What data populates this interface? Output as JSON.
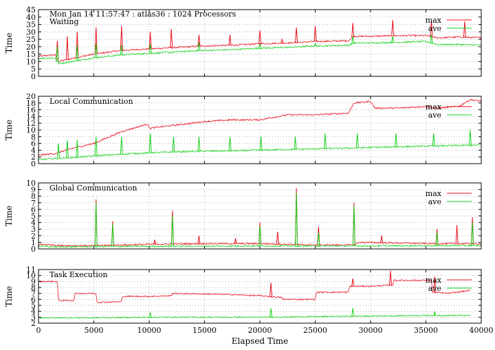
{
  "chart_data": {
    "type": "line",
    "x_axis": {
      "label": "Elapsed Time",
      "range": [
        0,
        40000
      ],
      "ticks": [
        0,
        5000,
        10000,
        15000,
        20000,
        25000,
        30000,
        35000,
        40000
      ]
    },
    "colors": {
      "max": "#e8101c",
      "ave": "#18d21c",
      "grid": "#a0a0a0"
    },
    "legend_position": "top-right",
    "grid": true,
    "panels": [
      {
        "title": "Mon Jan 14 11:57:47 : atlas36 : 1024 Processors",
        "subtitle": "Waiting",
        "ylabel": "Time",
        "ylim": [
          0,
          45
        ],
        "yticks": [
          0,
          5,
          10,
          15,
          20,
          25,
          30,
          35,
          40,
          45
        ],
        "series": [
          {
            "name": "max",
            "x": [
              0,
              1500,
              1800,
              3000,
              5000,
              7500,
              10000,
              12500,
              15000,
              17500,
              20000,
              22500,
              25000,
              28000,
              28500,
              30000,
              32500,
              35000,
              36000,
              38000,
              40000
            ],
            "y": [
              13.5,
              14.5,
              10,
              12,
              15,
              17.5,
              18.5,
              19.5,
              20.5,
              21,
              22,
              22.5,
              23.5,
              24,
              27,
              27,
              27.5,
              27.5,
              26,
              26.5,
              26
            ],
            "spikes": [
              [
                1700,
                24
              ],
              [
                2600,
                27
              ],
              [
                3500,
                30
              ],
              [
                5200,
                33
              ],
              [
                7500,
                34
              ],
              [
                10100,
                30
              ],
              [
                12000,
                32
              ],
              [
                14500,
                28
              ],
              [
                17300,
                28
              ],
              [
                20000,
                31
              ],
              [
                22000,
                25
              ],
              [
                23300,
                33
              ],
              [
                25000,
                34
              ],
              [
                28400,
                36
              ],
              [
                32000,
                38
              ],
              [
                35500,
                38
              ],
              [
                38500,
                37
              ]
            ]
          },
          {
            "name": "ave",
            "x": [
              0,
              1500,
              1800,
              3000,
              5000,
              7500,
              10000,
              12500,
              15000,
              17500,
              20000,
              22500,
              25000,
              28000,
              28500,
              30000,
              32500,
              35000,
              36000,
              38000,
              40000
            ],
            "y": [
              12,
              12.5,
              8.5,
              10,
              12.5,
              14.5,
              15.5,
              16.5,
              17.5,
              18,
              19,
              19.5,
              20.5,
              21,
              22.5,
              22.5,
              23,
              23.5,
              21.5,
              21.5,
              21
            ],
            "spikes": [
              [
                1700,
                20
              ],
              [
                3500,
                21
              ],
              [
                5200,
                22
              ],
              [
                7500,
                21
              ],
              [
                10100,
                22
              ],
              [
                14500,
                23
              ],
              [
                20000,
                22
              ],
              [
                25000,
                22
              ],
              [
                28400,
                27
              ],
              [
                32000,
                27
              ],
              [
                35500,
                28
              ]
            ]
          }
        ]
      },
      {
        "title": "Local Communication",
        "subtitle": "",
        "ylabel": "Time",
        "ylim": [
          0,
          20
        ],
        "yticks": [
          0,
          2,
          4,
          6,
          8,
          10,
          12,
          14,
          16,
          18,
          20
        ],
        "series": [
          {
            "name": "max",
            "x": [
              0,
              1500,
              3000,
              5000,
              7500,
              9900,
              10000,
              12500,
              15000,
              17500,
              20000,
              22500,
              25000,
              28000,
              28500,
              30000,
              30400,
              32500,
              35000,
              36000,
              38000,
              39000,
              40000
            ],
            "y": [
              2.5,
              3,
              4.5,
              6,
              9.5,
              11.8,
              10.5,
              11.5,
              12.5,
              13,
              13,
              14.5,
              14.5,
              15,
              18,
              18.5,
              16.5,
              16.5,
              17,
              16.5,
              17,
              19,
              18.5
            ],
            "spikes": []
          },
          {
            "name": "ave",
            "x": [
              0,
              1500,
              3000,
              5000,
              7500,
              10000,
              12500,
              15000,
              17500,
              20000,
              22500,
              25000,
              28000,
              30000,
              32500,
              35000,
              38000,
              40000
            ],
            "y": [
              1.2,
              1.5,
              1.8,
              2.3,
              2.8,
              3.2,
              3.5,
              3.7,
              3.8,
              4.0,
              4.2,
              4.4,
              4.6,
              4.8,
              5.0,
              5.2,
              5.4,
              5.5
            ],
            "spikes": [
              [
                1800,
                6
              ],
              [
                2600,
                7
              ],
              [
                3500,
                7
              ],
              [
                5200,
                8
              ],
              [
                7500,
                8
              ],
              [
                10100,
                9
              ],
              [
                12200,
                8
              ],
              [
                14500,
                8
              ],
              [
                17300,
                8
              ],
              [
                20100,
                8
              ],
              [
                23200,
                8
              ],
              [
                25900,
                9
              ],
              [
                28800,
                9
              ],
              [
                32300,
                9
              ],
              [
                35700,
                9
              ],
              [
                39000,
                10
              ]
            ]
          }
        ]
      },
      {
        "title": "Global Communication",
        "subtitle": "",
        "ylabel": "Time",
        "ylim": [
          0,
          10
        ],
        "yticks": [
          0,
          1,
          2,
          3,
          4,
          5,
          6,
          7,
          8,
          9,
          10
        ],
        "series": [
          {
            "name": "max",
            "x": [
              0,
              1500,
              2000,
              5000,
              10000,
              15000,
              20000,
              25000,
              28500,
              29000,
              32500,
              36000,
              40000
            ],
            "y": [
              0.7,
              0.6,
              0.5,
              0.5,
              0.7,
              0.8,
              0.8,
              0.6,
              0.6,
              1.0,
              0.9,
              0.8,
              0.8
            ],
            "spikes": [
              [
                5200,
                7.5
              ],
              [
                6700,
                4.2
              ],
              [
                10500,
                1.4
              ],
              [
                12100,
                5.8
              ],
              [
                14500,
                2
              ],
              [
                17800,
                1.6
              ],
              [
                20000,
                4
              ],
              [
                21600,
                2.6
              ],
              [
                23300,
                9.2
              ],
              [
                25300,
                3.4
              ],
              [
                28500,
                7
              ],
              [
                31000,
                2
              ],
              [
                36000,
                3
              ],
              [
                37800,
                3.6
              ],
              [
                39200,
                4.8
              ]
            ]
          },
          {
            "name": "ave",
            "x": [
              0,
              2000,
              5000,
              10000,
              15000,
              20000,
              25000,
              30000,
              35000,
              40000
            ],
            "y": [
              0.4,
              0.3,
              0.35,
              0.4,
              0.4,
              0.45,
              0.45,
              0.45,
              0.5,
              0.5
            ],
            "spikes": [
              [
                5200,
                7
              ],
              [
                6700,
                3.8
              ],
              [
                12100,
                5
              ],
              [
                20000,
                3.5
              ],
              [
                23300,
                8.5
              ],
              [
                25300,
                2.5
              ],
              [
                28500,
                6.5
              ],
              [
                36000,
                2.5
              ],
              [
                39200,
                4
              ]
            ]
          }
        ]
      },
      {
        "title": "Task Execution",
        "subtitle": "",
        "ylabel": "Time",
        "ylim": [
          2,
          11
        ],
        "yticks": [
          2,
          3,
          4,
          5,
          6,
          7,
          8,
          9,
          10,
          11
        ],
        "series": [
          {
            "name": "max",
            "x": [
              0,
              1700,
              1800,
              3200,
              3300,
              5200,
              5300,
              7500,
              7600,
              10000,
              12000,
              12100,
              15000,
              17500,
              20000,
              22000,
              22100,
              25000,
              25100,
              28000,
              28100,
              30000,
              32000,
              32100,
              35500,
              35600,
              37000,
              39000
            ],
            "y": [
              9,
              9,
              5.8,
              5.8,
              7,
              7,
              5.5,
              5.6,
              6.5,
              6.5,
              6.6,
              7,
              6.9,
              6.8,
              6.6,
              6.3,
              6.0,
              6.0,
              7.2,
              7.2,
              8.2,
              8.2,
              8.4,
              9.2,
              9.2,
              7.2,
              7.0,
              7.5
            ],
            "spikes": [
              [
                21000,
                8.8
              ],
              [
                28400,
                9.5
              ],
              [
                31800,
                10.8
              ],
              [
                35800,
                9.8
              ]
            ]
          },
          {
            "name": "ave",
            "x": [
              0,
              5000,
              10000,
              15000,
              20000,
              25000,
              30000,
              35000,
              39000
            ],
            "y": [
              2.9,
              2.9,
              3.0,
              3.0,
              3.0,
              3.1,
              3.2,
              3.3,
              3.3
            ],
            "spikes": [
              [
                10100,
                3.8
              ],
              [
                21000,
                4.5
              ],
              [
                28400,
                4.5
              ],
              [
                35800,
                4
              ]
            ]
          }
        ]
      }
    ]
  }
}
